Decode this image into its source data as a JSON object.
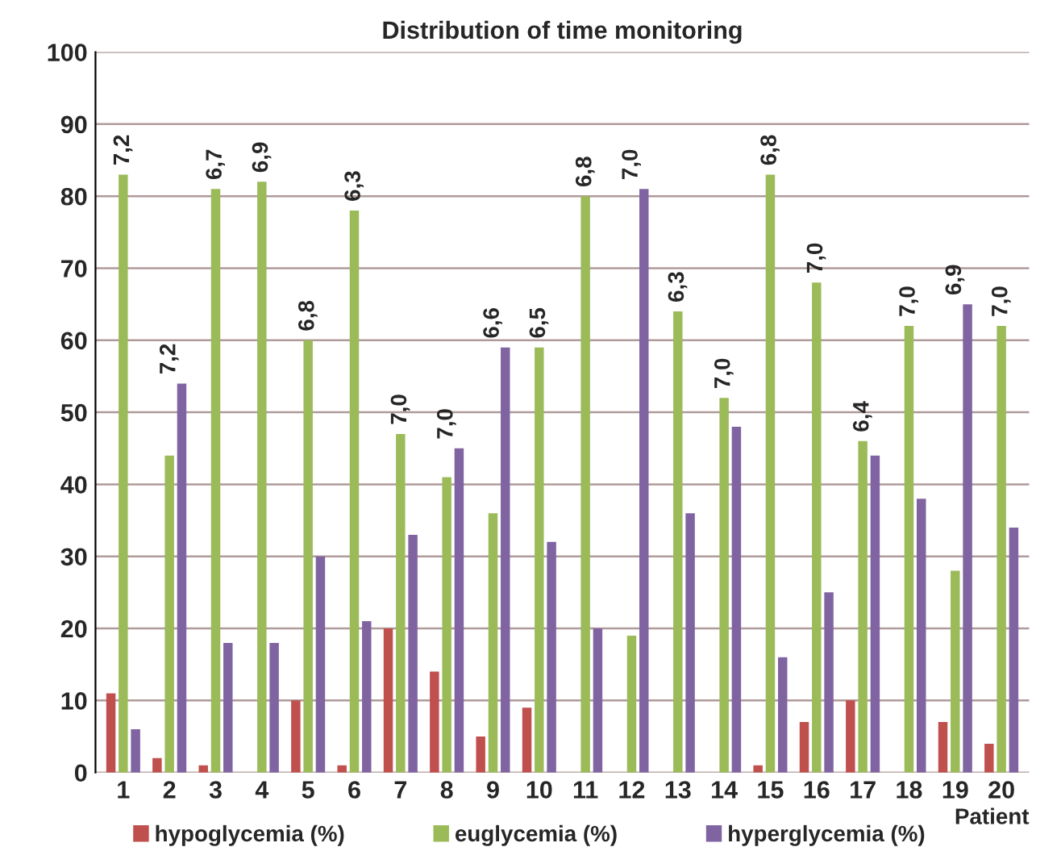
{
  "chart_data": {
    "type": "bar",
    "title": "Distribution of time monitoring",
    "xlabel": "Patient",
    "categories": [
      "1",
      "2",
      "3",
      "4",
      "5",
      "6",
      "7",
      "8",
      "9",
      "10",
      "11",
      "12",
      "13",
      "14",
      "15",
      "16",
      "17",
      "18",
      "19",
      "20"
    ],
    "series": [
      {
        "name": "hypoglycemia (%)",
        "color": "#c0504d",
        "values": [
          11,
          2,
          1,
          null,
          10,
          1,
          20,
          14,
          5,
          9,
          null,
          null,
          null,
          null,
          1,
          7,
          10,
          null,
          7,
          4
        ]
      },
      {
        "name": "euglycemia (%)",
        "color": "#9bbb59",
        "values": [
          83,
          44,
          81,
          82,
          60,
          78,
          47,
          41,
          36,
          59,
          80,
          19,
          64,
          52,
          83,
          68,
          46,
          62,
          28,
          62
        ]
      },
      {
        "name": "hyperglycemia (%)",
        "color": "#8064a2",
        "values": [
          6,
          54,
          18,
          18,
          30,
          21,
          33,
          45,
          59,
          32,
          20,
          81,
          36,
          48,
          16,
          25,
          44,
          38,
          65,
          34
        ]
      }
    ],
    "annotations": [
      {
        "text": "7,2",
        "x": "1",
        "y": 83
      },
      {
        "text": "7,2",
        "x": "2",
        "y": 54
      },
      {
        "text": "6,7",
        "x": "3",
        "y": 81
      },
      {
        "text": "6,9",
        "x": "4",
        "y": 82
      },
      {
        "text": "6,8",
        "x": "5",
        "y": 60
      },
      {
        "text": "6,3",
        "x": "6",
        "y": 78
      },
      {
        "text": "7,0",
        "x": "7",
        "y": 47
      },
      {
        "text": "7,0",
        "x": "8",
        "y": 45
      },
      {
        "text": "6,6",
        "x": "9",
        "y": 59
      },
      {
        "text": "6,5",
        "x": "10",
        "y": 59
      },
      {
        "text": "6,8",
        "x": "11",
        "y": 80
      },
      {
        "text": "7,0",
        "x": "12",
        "y": 81
      },
      {
        "text": "6,3",
        "x": "13",
        "y": 64
      },
      {
        "text": "7,0",
        "x": "14",
        "y": 52
      },
      {
        "text": "6,8",
        "x": "15",
        "y": 83
      },
      {
        "text": "7,0",
        "x": "16",
        "y": 68
      },
      {
        "text": "6,4",
        "x": "17",
        "y": 46
      },
      {
        "text": "7,0",
        "x": "18",
        "y": 62
      },
      {
        "text": "6,9",
        "x": "19",
        "y": 65
      },
      {
        "text": "7,0",
        "x": "20",
        "y": 62
      }
    ],
    "ylim": [
      0,
      100
    ],
    "yticks": [
      0,
      10,
      20,
      30,
      40,
      50,
      60,
      70,
      80,
      90,
      100
    ],
    "grid": "y",
    "legend": "bottom"
  }
}
